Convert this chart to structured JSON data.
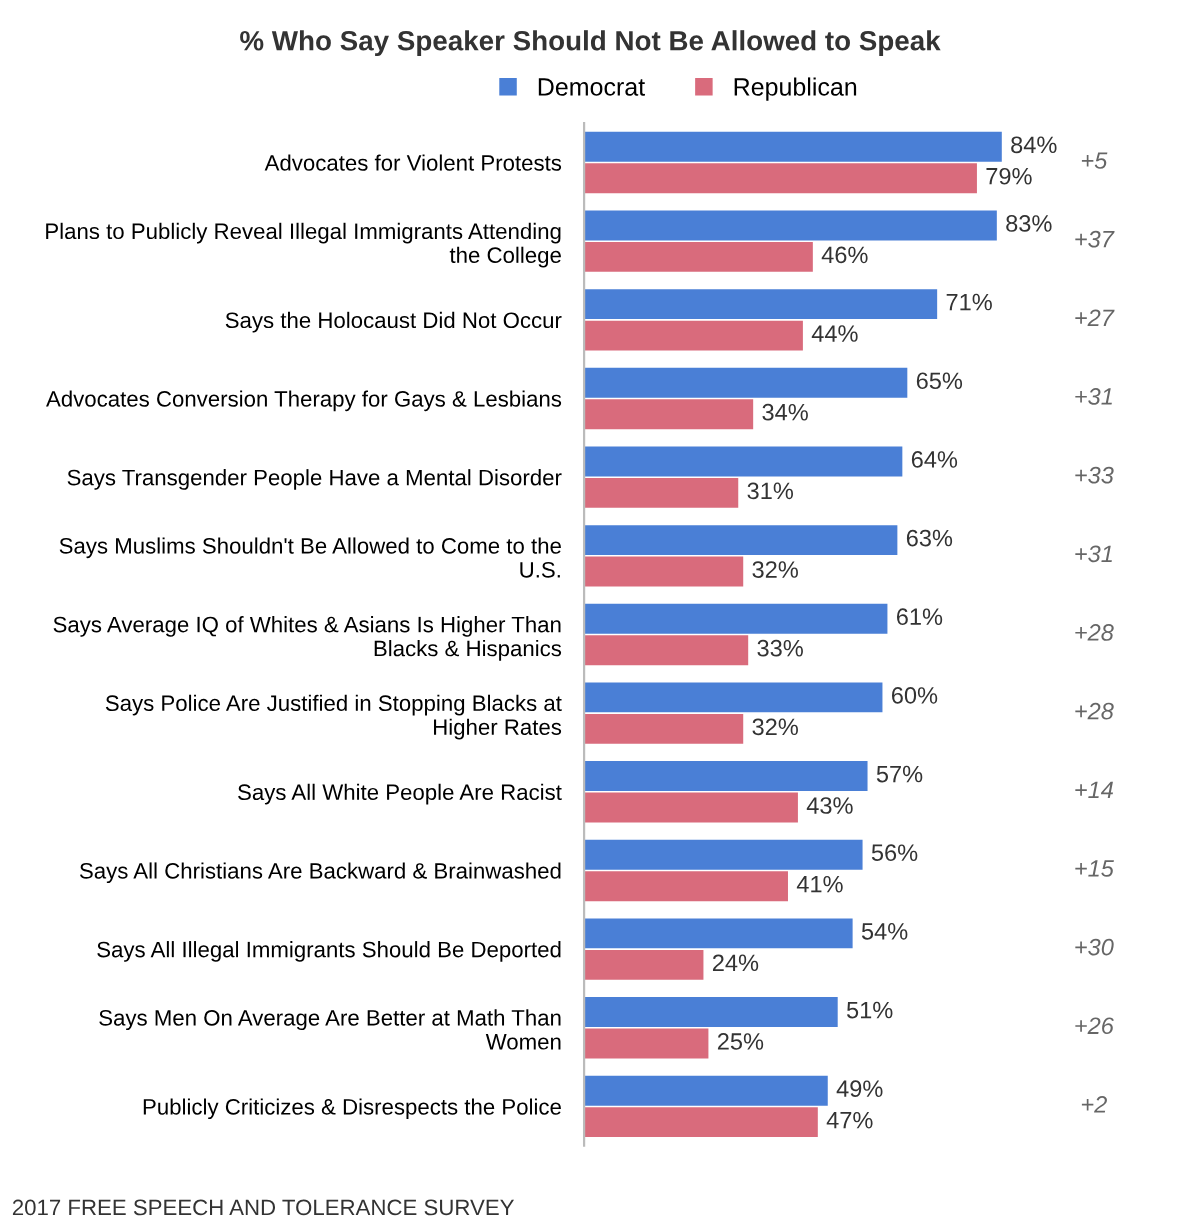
{
  "chart_data": {
    "type": "bar",
    "orientation": "horizontal",
    "title": "% Who Say Speaker Should Not Be Allowed to Speak",
    "categories": [
      "Advocates for Violent Protests",
      "Plans to Publicly Reveal Illegal Immigrants Attending\nthe College",
      "Says the Holocaust Did Not Occur",
      "Advocates Conversion Therapy for Gays & Lesbians",
      "Says Transgender People Have a Mental Disorder",
      "Says Muslims Shouldn't Be Allowed to Come to the\nU.S.",
      "Says Average IQ of Whites & Asians Is Higher Than\nBlacks & Hispanics",
      "Says Police Are Justified in Stopping Blacks at\nHigher Rates",
      "Says All White People Are Racist",
      "Says All Christians Are Backward & Brainwashed",
      "Says All Illegal Immigrants Should Be Deported",
      "Says Men On Average Are Better at Math Than\nWomen",
      "Publicly Criticizes & Disrespects the Police"
    ],
    "series": [
      {
        "name": "Democrat",
        "color": "#4a7fd6",
        "values": [
          84,
          83,
          71,
          65,
          64,
          63,
          61,
          60,
          57,
          56,
          54,
          51,
          49
        ],
        "value_labels": [
          "84%",
          "83%",
          "71%",
          "65%",
          "64%",
          "63%",
          "61%",
          "60%",
          "57%",
          "56%",
          "54%",
          "51%",
          "49%"
        ]
      },
      {
        "name": "Republican",
        "color": "#d96b7c",
        "values": [
          79,
          46,
          44,
          34,
          31,
          32,
          33,
          32,
          43,
          41,
          24,
          25,
          47
        ],
        "value_labels": [
          "79%",
          "46%",
          "44%",
          "34%",
          "31%",
          "32%",
          "33%",
          "32%",
          "43%",
          "41%",
          "24%",
          "25%",
          "47%"
        ]
      }
    ],
    "annotations": [
      "+5",
      "+37",
      "+27",
      "+31",
      "+33",
      "+31",
      "+28",
      "+28",
      "+14",
      "+15",
      "+30",
      "+26",
      "+2",
      "2017 FREE SPEECH AND TOLERANCE SURVEY"
    ],
    "legend": "top",
    "grid": false
  }
}
